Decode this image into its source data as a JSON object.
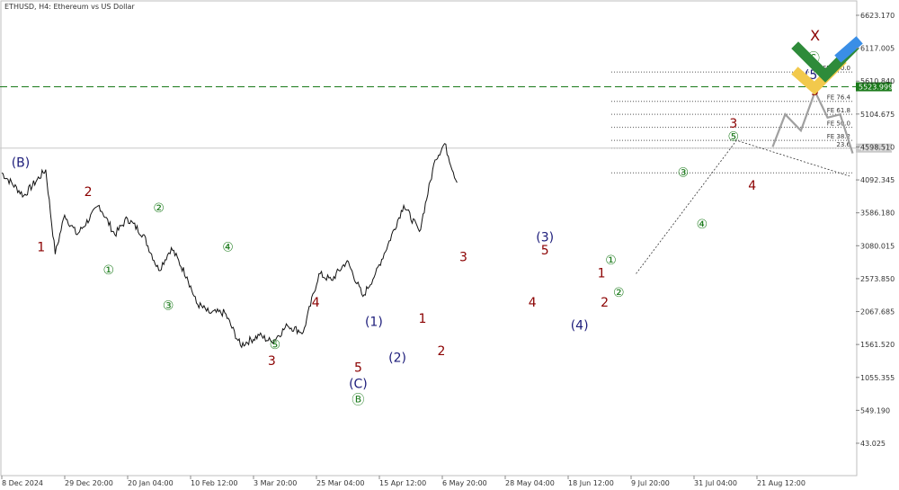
{
  "header": {
    "symbol_label": "ETHUSD, H4:  Ethereum vs US Dollar"
  },
  "chart_data": {
    "type": "line",
    "title": "ETHUSD, H4:  Ethereum vs US Dollar",
    "ylim": [
      43.025,
      6623.17
    ],
    "y_ticks": [
      {
        "v": 6623.17,
        "label": "6623.170"
      },
      {
        "v": 6117.005,
        "label": "6117.005"
      },
      {
        "v": 5610.84,
        "label": "5610.840"
      },
      {
        "v": 5104.675,
        "label": "5104.675"
      },
      {
        "v": 4598.51,
        "label": "4598.510"
      },
      {
        "v": 4092.345,
        "label": "4092.345"
      },
      {
        "v": 3586.18,
        "label": "3586.180"
      },
      {
        "v": 3080.015,
        "label": "3080.015"
      },
      {
        "v": 2573.85,
        "label": "2573.850"
      },
      {
        "v": 2067.685,
        "label": "2067.685"
      },
      {
        "v": 1561.52,
        "label": "1561.520"
      },
      {
        "v": 1055.355,
        "label": "1055.355"
      },
      {
        "v": 549.19,
        "label": "549.190"
      },
      {
        "v": 43.025,
        "label": "43.025"
      }
    ],
    "x_ticks": [
      "8 Dec 2024",
      "29 Dec 20:00",
      "20 Jan 04:00",
      "10 Feb 12:00",
      "3 Mar 20:00",
      "25 Mar 04:00",
      "15 Apr 12:00",
      "6 May 20:00",
      "28 May 04:00",
      "18 Jun 12:00",
      "9 Jul 20:00",
      "31 Jul 04:00",
      "21 Aug 12:00"
    ],
    "current_price": {
      "v": 4581.374,
      "label": "4581.374"
    },
    "target_level": {
      "v": 5523.999,
      "label": "5523.999",
      "color": "#1a7a1a"
    },
    "series": [
      {
        "x": [
          0,
          0.7,
          1.4,
          1.7,
          2.0,
          2.4,
          3.1,
          3.6,
          4.0,
          4.5,
          5.0,
          5.4,
          5.9,
          6.2,
          6.6,
          7.1,
          7.6,
          8.2,
          8.6,
          9.1,
          9.6,
          10.1,
          10.5,
          11.0,
          11.5,
          11.9,
          12.3,
          12.8,
          13.3,
          13.8,
          14.1,
          14.5
        ],
        "y": [
          4200,
          3850,
          4250,
          2950,
          3550,
          3250,
          3700,
          3250,
          3500,
          3250,
          2700,
          3050,
          2600,
          2200,
          2050,
          2050,
          1550,
          1700,
          1600,
          1850,
          1750,
          2650,
          2550,
          2850,
          2300,
          2650,
          3100,
          3700,
          3300,
          4400,
          4650,
          4050
        ]
      }
    ],
    "fib_levels": [
      {
        "v": 5750,
        "label": "FE 100.0"
      },
      {
        "v": 5300,
        "label": "FE 76.4"
      },
      {
        "v": 5100,
        "label": "FE 61.8"
      },
      {
        "v": 4900,
        "label": "FE 50.0"
      },
      {
        "v": 4700,
        "label": "FE 38.2"
      },
      {
        "v": 4580,
        "label": "23.6"
      },
      {
        "v": 4200,
        "label": ""
      }
    ],
    "wave_labels": [
      {
        "x": 0.6,
        "y": 4350,
        "text": "(B)",
        "color": "#1c1c7a"
      },
      {
        "x": 1.25,
        "y": 3050,
        "text": "1",
        "color": "#8b0000"
      },
      {
        "x": 2.75,
        "y": 3900,
        "text": "2",
        "color": "#8b0000"
      },
      {
        "x": 3.4,
        "y": 2700,
        "text": "①",
        "color": "#1a7a1a"
      },
      {
        "x": 5.0,
        "y": 3650,
        "text": "②",
        "color": "#1a7a1a"
      },
      {
        "x": 5.3,
        "y": 2150,
        "text": "③",
        "color": "#1a7a1a"
      },
      {
        "x": 7.2,
        "y": 3050,
        "text": "④",
        "color": "#1a7a1a"
      },
      {
        "x": 8.7,
        "y": 1550,
        "text": "⑤",
        "color": "#1a7a1a"
      },
      {
        "x": 8.6,
        "y": 1300,
        "text": "3",
        "color": "#8b0000"
      },
      {
        "x": 10.0,
        "y": 2200,
        "text": "4",
        "color": "#8b0000"
      },
      {
        "x": 11.35,
        "y": 1200,
        "text": "5",
        "color": "#8b0000"
      },
      {
        "x": 11.35,
        "y": 950,
        "text": "(C)",
        "color": "#1c1c7a"
      },
      {
        "x": 11.35,
        "y": 700,
        "text": "Ⓑ",
        "color": "#1a7a1a"
      },
      {
        "x": 11.85,
        "y": 1900,
        "text": "(1)",
        "color": "#1c1c7a"
      },
      {
        "x": 12.6,
        "y": 1350,
        "text": "(2)",
        "color": "#1c1c7a"
      },
      {
        "x": 13.4,
        "y": 1950,
        "text": "1",
        "color": "#8b0000"
      },
      {
        "x": 14.0,
        "y": 1450,
        "text": "2",
        "color": "#8b0000"
      },
      {
        "x": 14.7,
        "y": 2900,
        "text": "3",
        "color": "#8b0000"
      },
      {
        "x": 16.9,
        "y": 2200,
        "text": "4",
        "color": "#8b0000"
      },
      {
        "x": 17.3,
        "y": 3000,
        "text": "5",
        "color": "#8b0000"
      },
      {
        "x": 17.3,
        "y": 3200,
        "text": "(3)",
        "color": "#1c1c7a"
      },
      {
        "x": 18.4,
        "y": 1850,
        "text": "(4)",
        "color": "#1c1c7a"
      },
      {
        "x": 19.1,
        "y": 2650,
        "text": "1",
        "color": "#8b0000"
      },
      {
        "x": 19.2,
        "y": 2200,
        "text": "2",
        "color": "#8b0000"
      },
      {
        "x": 19.4,
        "y": 2850,
        "text": "①",
        "color": "#1a7a1a"
      },
      {
        "x": 19.65,
        "y": 2350,
        "text": "②",
        "color": "#1a7a1a"
      },
      {
        "x": 21.7,
        "y": 4200,
        "text": "③",
        "color": "#1a7a1a"
      },
      {
        "x": 22.3,
        "y": 3400,
        "text": "④",
        "color": "#1a7a1a"
      },
      {
        "x": 23.3,
        "y": 4950,
        "text": "3",
        "color": "#8b0000"
      },
      {
        "x": 23.3,
        "y": 4750,
        "text": "⑤",
        "color": "#1a7a1a"
      },
      {
        "x": 23.9,
        "y": 4000,
        "text": "4",
        "color": "#8b0000"
      },
      {
        "x": 25.9,
        "y": 5450,
        "text": "5",
        "color": "#8b0000"
      },
      {
        "x": 25.85,
        "y": 5700,
        "text": "(5)",
        "color": "#1c1c7a"
      },
      {
        "x": 25.85,
        "y": 5950,
        "text": "Ⓒ",
        "color": "#1a7a1a"
      }
    ],
    "forecast_path": {
      "x": [
        24.55,
        24.95,
        25.45,
        25.9,
        26.3,
        26.7,
        27.1
      ],
      "y": [
        4600,
        5100,
        4850,
        5450,
        5050,
        5100,
        4500
      ]
    },
    "dotted_trend": {
      "x": [
        20.2,
        23.4,
        27.0
      ],
      "y": [
        2650,
        4700,
        4150
      ]
    },
    "target_marker": {
      "text": "X",
      "x": 25.9,
      "y": 6300,
      "color": "#8b0000"
    }
  }
}
